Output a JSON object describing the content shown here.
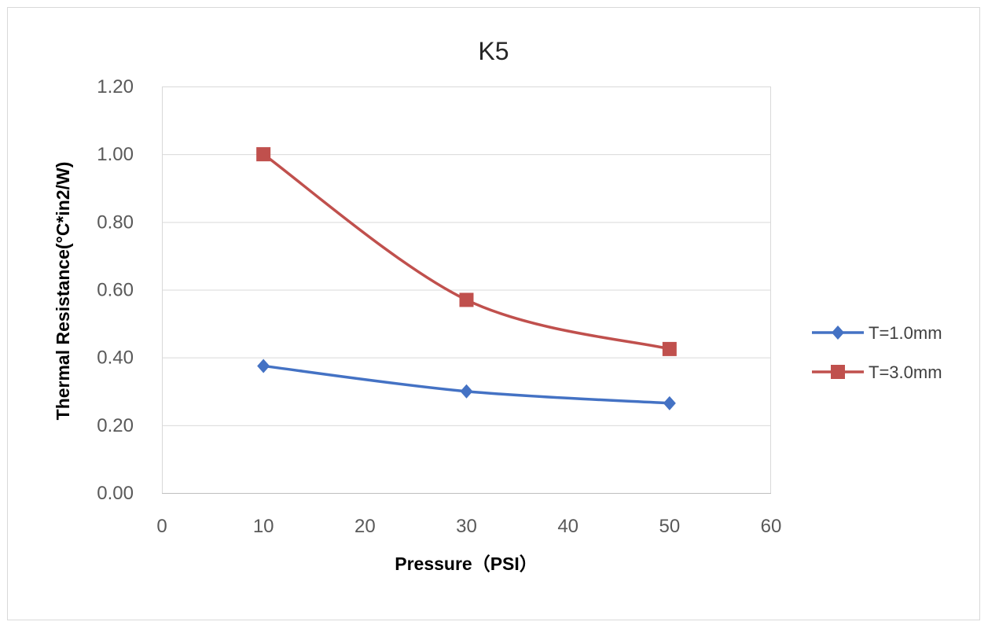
{
  "chart_data": {
    "type": "line",
    "title": "K5",
    "xlabel": "Pressure（PSI）",
    "ylabel": "Thermal Resistance(°C*in2/W)",
    "xlim": [
      0,
      60
    ],
    "ylim": [
      0,
      1.2
    ],
    "x_ticks": [
      "0",
      "10",
      "20",
      "30",
      "40",
      "50",
      "60"
    ],
    "y_ticks": [
      "0.00",
      "0.20",
      "0.40",
      "0.60",
      "0.80",
      "1.00",
      "1.20"
    ],
    "grid": "horizontal",
    "smooth": true,
    "legend_position": "right",
    "series": [
      {
        "name": "T=1.0mm",
        "color": "#4472c4",
        "marker": "diamond",
        "x": [
          10,
          30,
          50
        ],
        "values": [
          0.375,
          0.3,
          0.265
        ]
      },
      {
        "name": "T=3.0mm",
        "color": "#c0504d",
        "marker": "square",
        "x": [
          10,
          30,
          50
        ],
        "values": [
          1.0,
          0.57,
          0.425
        ]
      }
    ]
  }
}
